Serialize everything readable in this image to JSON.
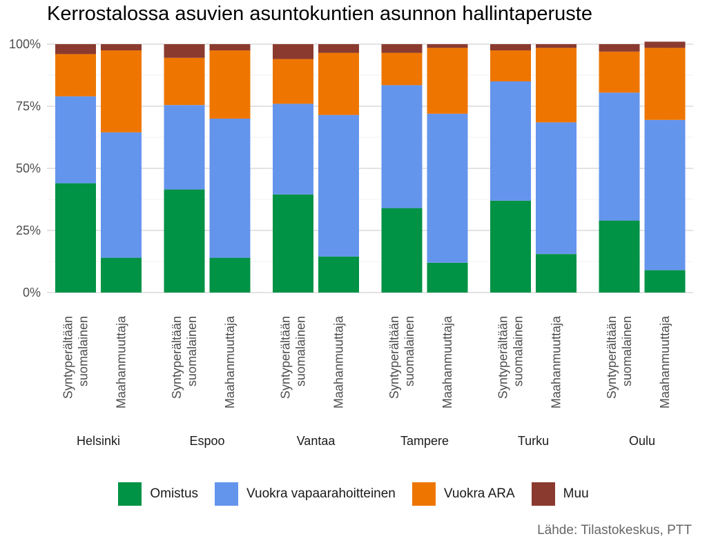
{
  "chart_data": {
    "type": "bar",
    "stacked": true,
    "title": "Kerrostalossa asuvien asuntokuntien asunnon hallintaperuste",
    "ylim": [
      0,
      100
    ],
    "y_ticks": [
      "0%",
      "25%",
      "50%",
      "75%",
      "100%"
    ],
    "groups": [
      "Helsinki",
      "Espoo",
      "Vantaa",
      "Tampere",
      "Turku",
      "Oulu"
    ],
    "categories": [
      "Syntyperältään suomalainen",
      "Maahanmuuttaja"
    ],
    "category_lines": [
      [
        "Syntyperältään",
        "suomalainen"
      ],
      [
        "Maahanmuuttaja"
      ]
    ],
    "series": [
      {
        "name": "Omistus",
        "color": "#009245",
        "values": [
          [
            44,
            14
          ],
          [
            41.5,
            14
          ],
          [
            39.5,
            14.5
          ],
          [
            34,
            12
          ],
          [
            37,
            15.5
          ],
          [
            29,
            9
          ]
        ]
      },
      {
        "name": "Vuokra vapaarahoitteinen",
        "color": "#6495ED",
        "values": [
          [
            35,
            50.5
          ],
          [
            34,
            56
          ],
          [
            36.5,
            57
          ],
          [
            49.5,
            60
          ],
          [
            48,
            53
          ],
          [
            51.5,
            60.5
          ]
        ]
      },
      {
        "name": "Vuokra ARA",
        "color": "#EE7600",
        "values": [
          [
            17,
            33
          ],
          [
            19,
            27.5
          ],
          [
            18,
            25
          ],
          [
            13,
            26.5
          ],
          [
            12.5,
            30
          ],
          [
            16.5,
            29
          ]
        ]
      },
      {
        "name": "Muu",
        "color": "#8B3A2F",
        "values": [
          [
            4,
            2.5
          ],
          [
            5.5,
            2.5
          ],
          [
            6,
            3.5
          ],
          [
            3.5,
            1.5
          ],
          [
            2.5,
            1.5
          ],
          [
            3,
            2.5
          ]
        ]
      }
    ],
    "grid": true,
    "legend_position": "bottom"
  },
  "source": "Lähde: Tilastokeskus, PTT"
}
